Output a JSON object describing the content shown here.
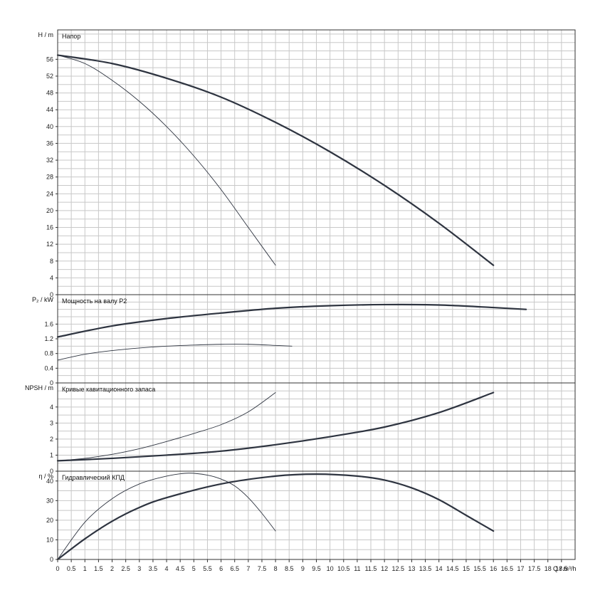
{
  "chart_data": {
    "type": "line",
    "x_axis": {
      "label": "Q / m³/h",
      "range": [
        0,
        19
      ],
      "step": 0.5,
      "ticks": [
        "0",
        "0.5",
        "1",
        "1.5",
        "2",
        "2.5",
        "3",
        "3.5",
        "4",
        "4.5",
        "5",
        "5.5",
        "6",
        "6.5",
        "7",
        "7.5",
        "8",
        "8.5",
        "9",
        "9.5",
        "10",
        "10.5",
        "11",
        "11.5",
        "12",
        "12.5",
        "13",
        "13.5",
        "14",
        "14.5",
        "15",
        "15.5",
        "16",
        "16.5",
        "17",
        "17.5",
        "18",
        "18.5"
      ]
    },
    "grid": true,
    "panels": [
      {
        "title": "Напор",
        "ylabel": "H / m",
        "ylim": [
          0,
          63
        ],
        "yticks": [
          0,
          4,
          8,
          12,
          16,
          20,
          24,
          28,
          32,
          36,
          40,
          44,
          48,
          52,
          56
        ],
        "series": [
          {
            "style": "thick",
            "x": [
              0,
              2,
              4,
              6,
              8,
              10,
              12,
              14,
              16
            ],
            "y": [
              57,
              55,
              51.5,
              47,
              41,
              34,
              26,
              17,
              7
            ]
          },
          {
            "style": "thin",
            "x": [
              0,
              1,
              2,
              3,
              4,
              5,
              6,
              7,
              8
            ],
            "y": [
              57,
              55,
              51,
              46,
              40,
              33,
              25,
              16,
              7
            ]
          }
        ]
      },
      {
        "title": "Мощность на валу P2",
        "ylabel": "P₂ / kW",
        "ylim": [
          0,
          2.4
        ],
        "yticks": [
          0,
          0.4,
          0.8,
          1.2,
          1.6
        ],
        "series": [
          {
            "style": "thick",
            "x": [
              0,
              2,
              4,
              6,
              8,
              10,
              12,
              14,
              16,
              17.2
            ],
            "y": [
              1.25,
              1.55,
              1.75,
              1.9,
              2.03,
              2.1,
              2.13,
              2.12,
              2.05,
              2.0
            ]
          },
          {
            "style": "thin",
            "x": [
              0,
              1,
              2,
              3,
              4,
              5,
              6,
              7,
              8,
              8.6
            ],
            "y": [
              0.62,
              0.78,
              0.88,
              0.95,
              1.0,
              1.03,
              1.05,
              1.05,
              1.02,
              1.0
            ]
          }
        ]
      },
      {
        "title": "Кривые кавитационного запаса",
        "ylabel": "NPSH / m",
        "ylim": [
          0,
          5.5
        ],
        "yticks": [
          0,
          1,
          2,
          3,
          4
        ],
        "series": [
          {
            "style": "thick",
            "x": [
              0,
              2,
              4,
              6,
              8,
              10,
              12,
              14,
              16
            ],
            "y": [
              0.65,
              0.8,
              1.0,
              1.25,
              1.65,
              2.15,
              2.75,
              3.65,
              4.9
            ]
          },
          {
            "style": "thin",
            "x": [
              0,
              1,
              2,
              3,
              4,
              5,
              6,
              7,
              8
            ],
            "y": [
              0.65,
              0.8,
              1.05,
              1.4,
              1.85,
              2.35,
              2.9,
              3.7,
              4.9
            ]
          }
        ]
      },
      {
        "title": "Гидравлический КПД",
        "ylabel": "η / %",
        "ylim": [
          0,
          45
        ],
        "yticks": [
          0,
          10,
          20,
          30,
          40
        ],
        "series": [
          {
            "style": "thick",
            "x": [
              0,
              1,
              2,
              3,
              4,
              6,
              8,
              9.5,
              11,
              12,
              13,
              14,
              15,
              16
            ],
            "y": [
              0,
              10.5,
              19.5,
              26.5,
              31.5,
              38.5,
              42.5,
              43.5,
              42.5,
              40.5,
              36.5,
              30.5,
              22.5,
              14.5
            ]
          },
          {
            "style": "thin",
            "x": [
              0,
              1,
              2,
              3,
              4,
              4.8,
              5.5,
              6,
              6.5,
              7,
              7.5,
              8
            ],
            "y": [
              0,
              19,
              31,
              38.5,
              42.5,
              44,
              43,
              41,
              37.5,
              31.5,
              23.5,
              14.5
            ]
          }
        ]
      }
    ]
  }
}
